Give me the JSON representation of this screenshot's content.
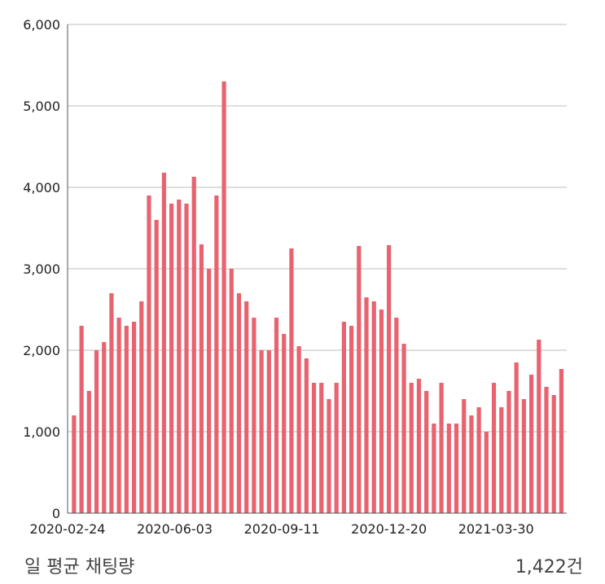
{
  "colors": {
    "bar": "#e8636f",
    "grid": "#bdbdbd",
    "axis": "#555555"
  },
  "footer": {
    "label": "일 평균 채팅량",
    "value": "1,422건"
  },
  "chart_data": {
    "type": "bar",
    "title": "",
    "xlabel": "",
    "ylabel": "",
    "ylim": [
      0,
      6000
    ],
    "yticks": [
      "0",
      "1,000",
      "2,000",
      "3,000",
      "4,000",
      "5,000",
      "6,000"
    ],
    "xticks": [
      "2020-02-24",
      "2020-06-03",
      "2020-09-11",
      "2020-12-20",
      "2021-03-30"
    ],
    "grid": true,
    "x_range": [
      "2020-02-24",
      "2021-06-04"
    ],
    "x": [
      "2020-03-01",
      "2020-03-08",
      "2020-03-15",
      "2020-03-22",
      "2020-03-29",
      "2020-04-05",
      "2020-04-12",
      "2020-04-19",
      "2020-04-26",
      "2020-05-03",
      "2020-05-10",
      "2020-05-17",
      "2020-05-24",
      "2020-05-31",
      "2020-06-07",
      "2020-06-14",
      "2020-06-21",
      "2020-06-28",
      "2020-07-05",
      "2020-07-12",
      "2020-07-19",
      "2020-07-26",
      "2020-08-02",
      "2020-08-09",
      "2020-08-16",
      "2020-08-23",
      "2020-08-30",
      "2020-09-06",
      "2020-09-13",
      "2020-09-20",
      "2020-09-27",
      "2020-10-04",
      "2020-10-11",
      "2020-10-18",
      "2020-10-25",
      "2020-11-01",
      "2020-11-08",
      "2020-11-15",
      "2020-11-22",
      "2020-11-29",
      "2020-12-06",
      "2020-12-13",
      "2020-12-20",
      "2020-12-27",
      "2021-01-03",
      "2021-01-10",
      "2021-01-17",
      "2021-01-24",
      "2021-01-31",
      "2021-02-07",
      "2021-02-14",
      "2021-02-21",
      "2021-02-28",
      "2021-03-07",
      "2021-03-14",
      "2021-03-21",
      "2021-03-28",
      "2021-04-04",
      "2021-04-11",
      "2021-04-18",
      "2021-04-25",
      "2021-05-02",
      "2021-05-09",
      "2021-05-16",
      "2021-05-23",
      "2021-05-30"
    ],
    "values": [
      1200,
      2300,
      1500,
      2000,
      2100,
      2700,
      2400,
      2300,
      2350,
      2600,
      3900,
      3600,
      4180,
      3800,
      3850,
      3800,
      4130,
      3300,
      3000,
      3900,
      5300,
      3000,
      2700,
      2600,
      2400,
      2000,
      2000,
      2400,
      2200,
      3250,
      2050,
      1900,
      1600,
      1600,
      1400,
      1600,
      2350,
      2300,
      3280,
      2650,
      2600,
      2500,
      3290,
      2400,
      2080,
      1600,
      1650,
      1500,
      1100,
      1600,
      1100,
      1100,
      1400,
      1200,
      1300,
      1000,
      1600,
      1300,
      1500,
      1850,
      1400,
      1700,
      2130,
      1550,
      1450,
      1770
    ]
  }
}
